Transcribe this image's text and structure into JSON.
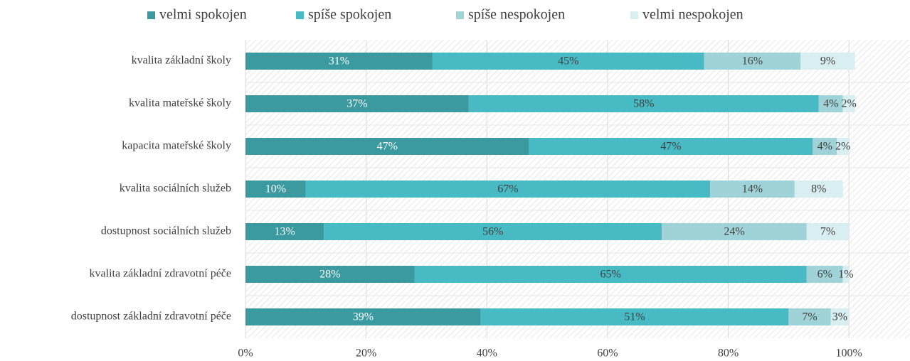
{
  "chart_data": {
    "type": "stacked_barh",
    "categories": [
      "kvalita základní školy",
      "kvalita  mateřské školy",
      "kapacita mateřské školy",
      "kvalita sociálních služeb",
      "dostupnost sociálních služeb",
      "kvalita základní zdravotní péče",
      "dostupnost základní zdravotní péče"
    ],
    "series": [
      {
        "name": "velmi spokojen",
        "color": "#3a9aa0",
        "values": [
          31,
          37,
          47,
          10,
          13,
          28,
          39
        ],
        "value_labels": [
          "31%",
          "37%",
          "47%",
          "10%",
          "13%",
          "28%",
          "39%"
        ]
      },
      {
        "name": "spíše spokojen",
        "color": "#48bac4",
        "values": [
          45,
          58,
          47,
          67,
          56,
          65,
          51
        ],
        "value_labels": [
          "45%",
          "58%",
          "47%",
          "67%",
          "56%",
          "65%",
          "51%"
        ]
      },
      {
        "name": "spíše nespokojen",
        "color": "#a0d3d7",
        "values": [
          16,
          4,
          4,
          14,
          24,
          6,
          7
        ],
        "value_labels": [
          "16%",
          "4%",
          "4%",
          "14%",
          "24%",
          "6%",
          "7%"
        ]
      },
      {
        "name": "velmi nespokojen",
        "color": "#d9eef0",
        "values": [
          9,
          2,
          2,
          8,
          7,
          1,
          3
        ],
        "value_labels": [
          "9%",
          "2%",
          "2%",
          "8%",
          "7%",
          "1%",
          "3%"
        ]
      }
    ],
    "xlim": [
      0,
      110
    ],
    "xticks": [
      {
        "value": 0,
        "label": "0%"
      },
      {
        "value": 20,
        "label": "20%"
      },
      {
        "value": 40,
        "label": "40%"
      },
      {
        "value": 60,
        "label": "60%"
      },
      {
        "value": 80,
        "label": "80%"
      },
      {
        "value": 100,
        "label": "100%"
      }
    ],
    "grid": true,
    "legend": "top"
  }
}
